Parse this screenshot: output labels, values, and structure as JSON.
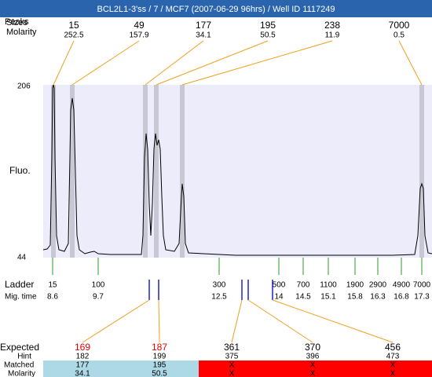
{
  "header": {
    "title": "BCL2L1-3'ss / 7 / MCF7 (2007-06-29 96hrs) / Well ID 1117249"
  },
  "peaks": {
    "label_peaks": "Peaks",
    "label_sizes": "Sizes",
    "label_molarity": "Molarity",
    "items": [
      {
        "size": 15,
        "molarity": 252.5
      },
      {
        "size": 49,
        "molarity": 157.9
      },
      {
        "size": 177,
        "molarity": 34.1
      },
      {
        "size": 195,
        "molarity": 50.5
      },
      {
        "size": 238,
        "molarity": 11.9
      },
      {
        "size": 7000,
        "molarity": 0.5
      }
    ]
  },
  "plot": {
    "y_top": 206,
    "y_bottom": 44,
    "y_label": "Fluo."
  },
  "ladder": {
    "label": "Ladder",
    "mig_label": "Mig. time",
    "items": [
      {
        "size": 15,
        "mig": 8.6
      },
      {
        "size": 100,
        "mig": 9.7
      },
      {
        "size": 300,
        "mig": 12.5
      },
      {
        "size": 500,
        "mig": 14
      },
      {
        "size": 700,
        "mig": 14.5
      },
      {
        "size": 1100,
        "mig": 15.1
      },
      {
        "size": 1900,
        "mig": 15.8
      },
      {
        "size": 2900,
        "mig": 16.3
      },
      {
        "size": 4900,
        "mig": 16.8
      },
      {
        "size": 7000,
        "mig": 17.3
      }
    ]
  },
  "expected": {
    "label": "Expected",
    "hint_label": "Hint",
    "matched_label": "Matched",
    "molarity_label": "Molarity",
    "items": [
      {
        "expected": 169,
        "color": "#e00000",
        "hint": 182,
        "matched": 177,
        "molarity": 34.1
      },
      {
        "expected": 187,
        "color": "#e00000",
        "hint": 199,
        "matched": 195,
        "molarity": 50.5
      },
      {
        "expected": 361,
        "color": "#000000",
        "hint": 375,
        "matched": "X",
        "molarity": "X"
      },
      {
        "expected": 370,
        "color": "#000000",
        "hint": 396,
        "matched": "X",
        "molarity": "X"
      },
      {
        "expected": 456,
        "color": "#000000",
        "hint": 473,
        "matched": "X",
        "molarity": "X"
      }
    ]
  }
}
